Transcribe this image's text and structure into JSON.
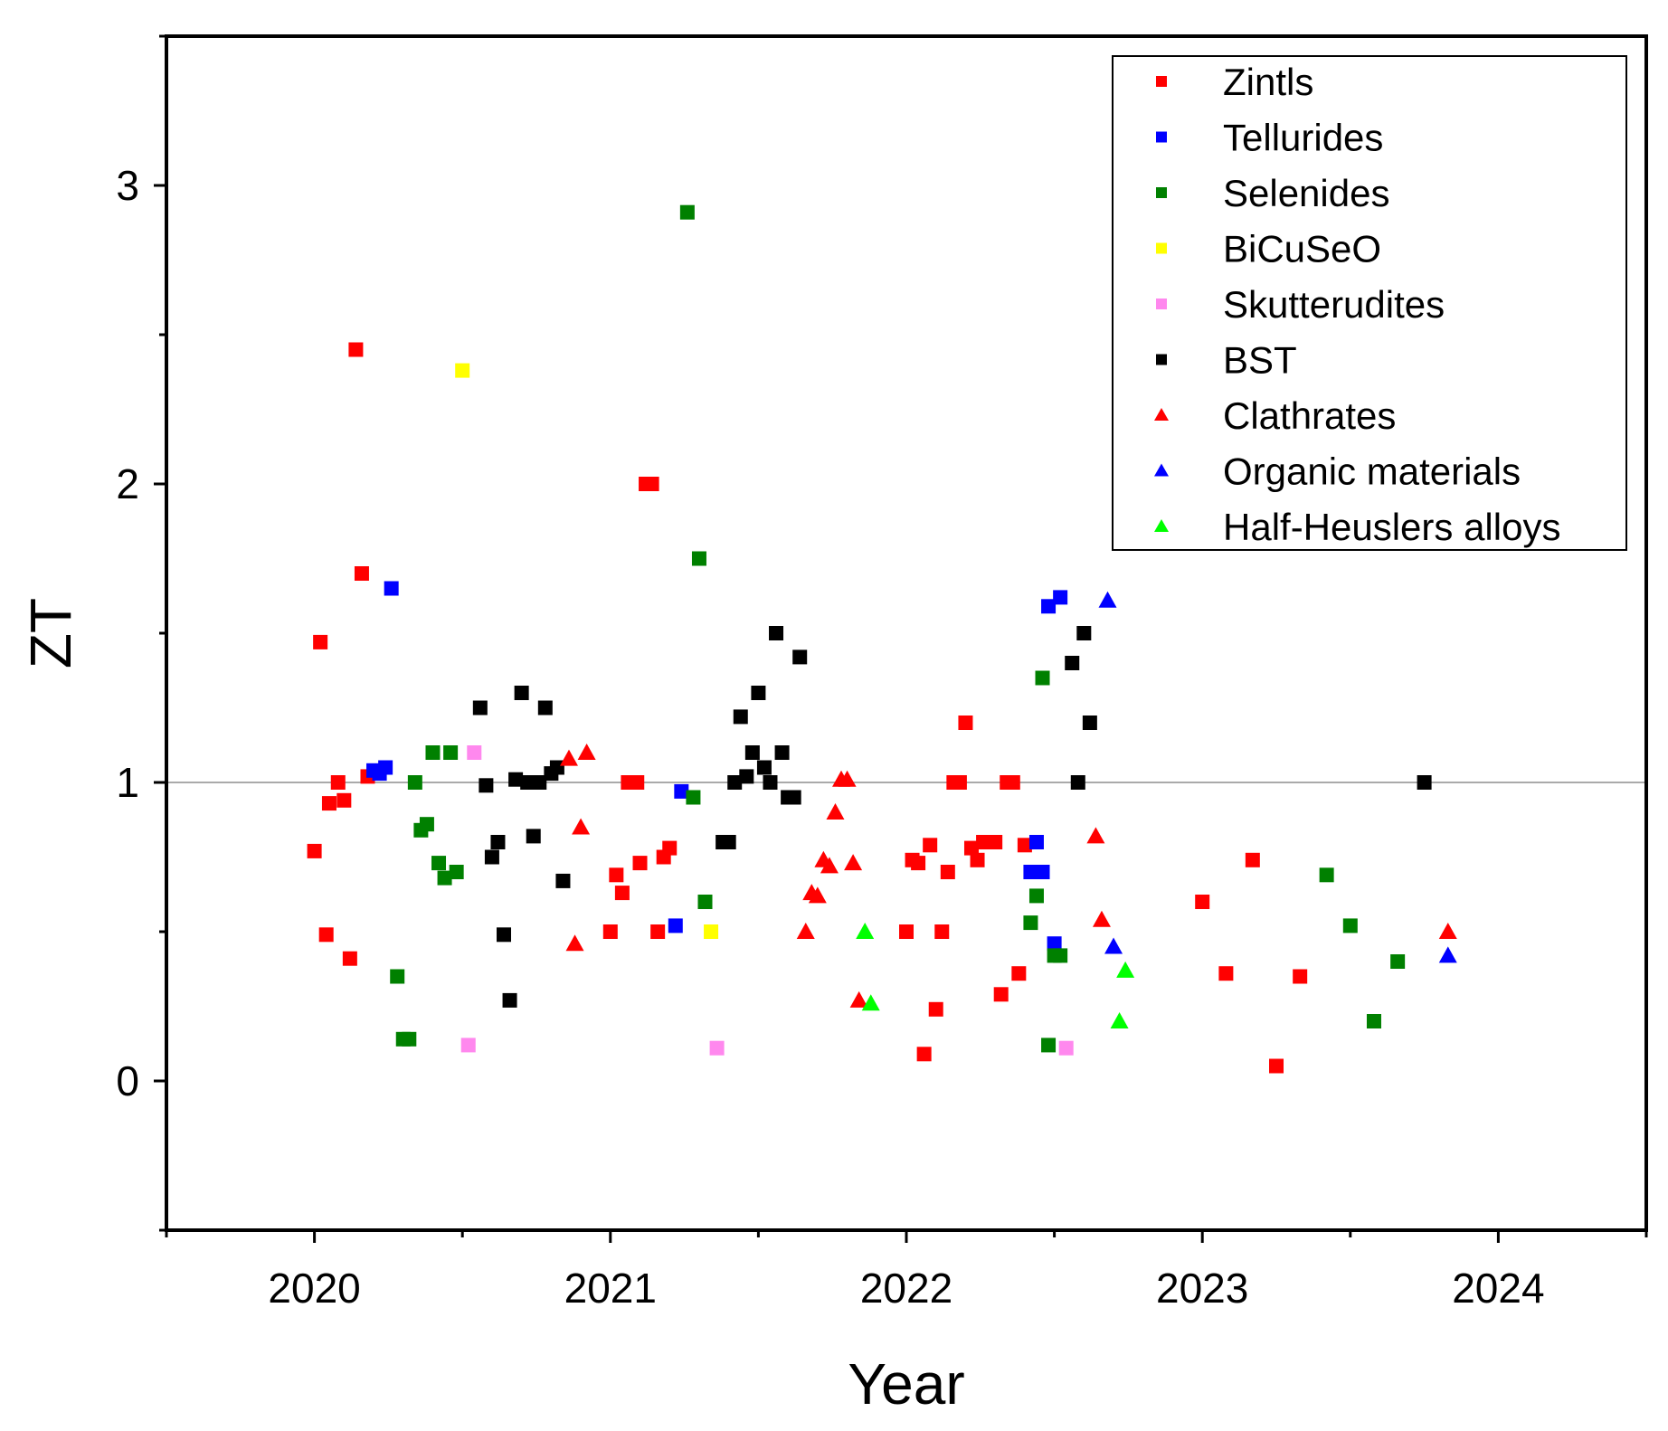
{
  "chart_data": {
    "type": "scatter",
    "title": "",
    "xlabel": "Year",
    "ylabel": "ZT",
    "xlim": [
      2019.5,
      2024.5
    ],
    "ylim": [
      -0.5,
      3.5
    ],
    "xticks": [
      2020,
      2021,
      2022,
      2023,
      2024
    ],
    "xtick_labels": [
      "2020",
      "2021",
      "2022",
      "2023",
      "2024"
    ],
    "yticks": [
      0,
      1,
      2,
      3
    ],
    "ytick_labels": [
      "0",
      "1",
      "2",
      "3"
    ],
    "reference_line_y": 1,
    "legend_position": "top-right",
    "series": [
      {
        "name": "Zintls",
        "color": "#ff0000",
        "marker": "square",
        "points": [
          [
            2020.0,
            0.77
          ],
          [
            2020.02,
            1.47
          ],
          [
            2020.04,
            0.49
          ],
          [
            2020.05,
            0.93
          ],
          [
            2020.08,
            1.0
          ],
          [
            2020.1,
            0.94
          ],
          [
            2020.12,
            0.41
          ],
          [
            2020.14,
            2.45
          ],
          [
            2020.16,
            1.7
          ],
          [
            2020.18,
            1.02
          ],
          [
            2021.0,
            0.5
          ],
          [
            2021.02,
            0.69
          ],
          [
            2021.04,
            0.63
          ],
          [
            2021.06,
            1.0
          ],
          [
            2021.09,
            1.0
          ],
          [
            2021.1,
            0.73
          ],
          [
            2021.12,
            2.0
          ],
          [
            2021.14,
            2.0
          ],
          [
            2021.16,
            0.5
          ],
          [
            2021.18,
            0.75
          ],
          [
            2021.2,
            0.78
          ],
          [
            2022.0,
            0.5
          ],
          [
            2022.02,
            0.74
          ],
          [
            2022.04,
            0.73
          ],
          [
            2022.06,
            0.09
          ],
          [
            2022.08,
            0.79
          ],
          [
            2022.1,
            0.24
          ],
          [
            2022.12,
            0.5
          ],
          [
            2022.14,
            0.7
          ],
          [
            2022.16,
            1.0
          ],
          [
            2022.18,
            1.0
          ],
          [
            2022.2,
            1.2
          ],
          [
            2022.22,
            0.78
          ],
          [
            2022.24,
            0.74
          ],
          [
            2022.26,
            0.8
          ],
          [
            2022.28,
            0.8
          ],
          [
            2022.3,
            0.8
          ],
          [
            2022.32,
            0.29
          ],
          [
            2022.34,
            1.0
          ],
          [
            2022.36,
            1.0
          ],
          [
            2022.38,
            0.36
          ],
          [
            2022.4,
            0.79
          ],
          [
            2023.0,
            0.6
          ],
          [
            2023.08,
            0.36
          ],
          [
            2023.17,
            0.74
          ],
          [
            2023.25,
            0.05
          ],
          [
            2023.33,
            0.35
          ]
        ]
      },
      {
        "name": "Tellurides",
        "color": "#0000ff",
        "marker": "square",
        "points": [
          [
            2020.2,
            1.04
          ],
          [
            2020.22,
            1.03
          ],
          [
            2020.24,
            1.05
          ],
          [
            2020.26,
            1.65
          ],
          [
            2021.22,
            0.52
          ],
          [
            2021.24,
            0.97
          ],
          [
            2022.42,
            0.7
          ],
          [
            2022.44,
            0.8
          ],
          [
            2022.46,
            0.7
          ],
          [
            2022.48,
            1.59
          ],
          [
            2022.5,
            0.46
          ],
          [
            2022.52,
            1.62
          ]
        ]
      },
      {
        "name": "Selenides",
        "color": "#008000",
        "marker": "square",
        "points": [
          [
            2020.28,
            0.35
          ],
          [
            2020.3,
            0.14
          ],
          [
            2020.32,
            0.14
          ],
          [
            2020.34,
            1.0
          ],
          [
            2020.36,
            0.84
          ],
          [
            2020.38,
            0.86
          ],
          [
            2020.4,
            1.1
          ],
          [
            2020.42,
            0.73
          ],
          [
            2020.44,
            0.68
          ],
          [
            2020.46,
            1.1
          ],
          [
            2020.48,
            0.7
          ],
          [
            2021.26,
            2.91
          ],
          [
            2021.28,
            0.95
          ],
          [
            2021.3,
            1.75
          ],
          [
            2021.32,
            0.6
          ],
          [
            2022.42,
            0.53
          ],
          [
            2022.44,
            0.62
          ],
          [
            2022.46,
            1.35
          ],
          [
            2022.48,
            0.12
          ],
          [
            2022.5,
            0.42
          ],
          [
            2022.52,
            0.42
          ],
          [
            2023.42,
            0.69
          ],
          [
            2023.5,
            0.52
          ],
          [
            2023.58,
            0.2
          ],
          [
            2023.66,
            0.4
          ]
        ]
      },
      {
        "name": "BiCuSeO",
        "color": "#ffff00",
        "marker": "square",
        "points": [
          [
            2020.5,
            2.38
          ],
          [
            2021.34,
            0.5
          ]
        ]
      },
      {
        "name": "Skutterudites",
        "color": "#ff88ee",
        "marker": "square",
        "points": [
          [
            2020.52,
            0.12
          ],
          [
            2020.54,
            1.1
          ],
          [
            2021.36,
            0.11
          ],
          [
            2022.54,
            0.11
          ]
        ]
      },
      {
        "name": "BST",
        "color": "#000000",
        "marker": "square",
        "points": [
          [
            2020.56,
            1.25
          ],
          [
            2020.58,
            0.99
          ],
          [
            2020.6,
            0.75
          ],
          [
            2020.62,
            0.8
          ],
          [
            2020.64,
            0.49
          ],
          [
            2020.66,
            0.27
          ],
          [
            2020.68,
            1.01
          ],
          [
            2020.7,
            1.3
          ],
          [
            2020.72,
            1.0
          ],
          [
            2020.74,
            0.82
          ],
          [
            2020.76,
            1.0
          ],
          [
            2020.78,
            1.25
          ],
          [
            2020.8,
            1.03
          ],
          [
            2020.82,
            1.05
          ],
          [
            2020.84,
            0.67
          ],
          [
            2021.38,
            0.8
          ],
          [
            2021.4,
            0.8
          ],
          [
            2021.42,
            1.0
          ],
          [
            2021.44,
            1.22
          ],
          [
            2021.46,
            1.02
          ],
          [
            2021.48,
            1.1
          ],
          [
            2021.5,
            1.3
          ],
          [
            2021.52,
            1.05
          ],
          [
            2021.54,
            1.0
          ],
          [
            2021.56,
            1.5
          ],
          [
            2021.58,
            1.1
          ],
          [
            2021.6,
            0.95
          ],
          [
            2021.62,
            0.95
          ],
          [
            2021.64,
            1.42
          ],
          [
            2022.56,
            1.4
          ],
          [
            2022.58,
            1.0
          ],
          [
            2022.6,
            1.5
          ],
          [
            2022.62,
            1.2
          ],
          [
            2023.75,
            1.0
          ]
        ]
      },
      {
        "name": "Clathrates",
        "color": "#ff0000",
        "marker": "triangle",
        "points": [
          [
            2020.86,
            1.08
          ],
          [
            2020.88,
            0.46
          ],
          [
            2020.9,
            0.85
          ],
          [
            2020.92,
            1.1
          ],
          [
            2021.66,
            0.5
          ],
          [
            2021.68,
            0.63
          ],
          [
            2021.7,
            0.62
          ],
          [
            2021.72,
            0.74
          ],
          [
            2021.74,
            0.72
          ],
          [
            2021.76,
            0.9
          ],
          [
            2021.78,
            1.01
          ],
          [
            2021.8,
            1.01
          ],
          [
            2021.82,
            0.73
          ],
          [
            2021.84,
            0.27
          ],
          [
            2022.64,
            0.82
          ],
          [
            2022.66,
            0.54
          ],
          [
            2023.83,
            0.5
          ]
        ]
      },
      {
        "name": "Organic materials",
        "color": "#0000ff",
        "marker": "triangle",
        "points": [
          [
            2022.68,
            1.61
          ],
          [
            2022.7,
            0.45
          ],
          [
            2023.83,
            0.42
          ]
        ]
      },
      {
        "name": "Half-Heuslers alloys",
        "color": "#00ff00",
        "marker": "triangle",
        "points": [
          [
            2021.86,
            0.5
          ],
          [
            2021.88,
            0.26
          ],
          [
            2022.72,
            0.2
          ],
          [
            2022.74,
            0.37
          ]
        ]
      }
    ]
  }
}
